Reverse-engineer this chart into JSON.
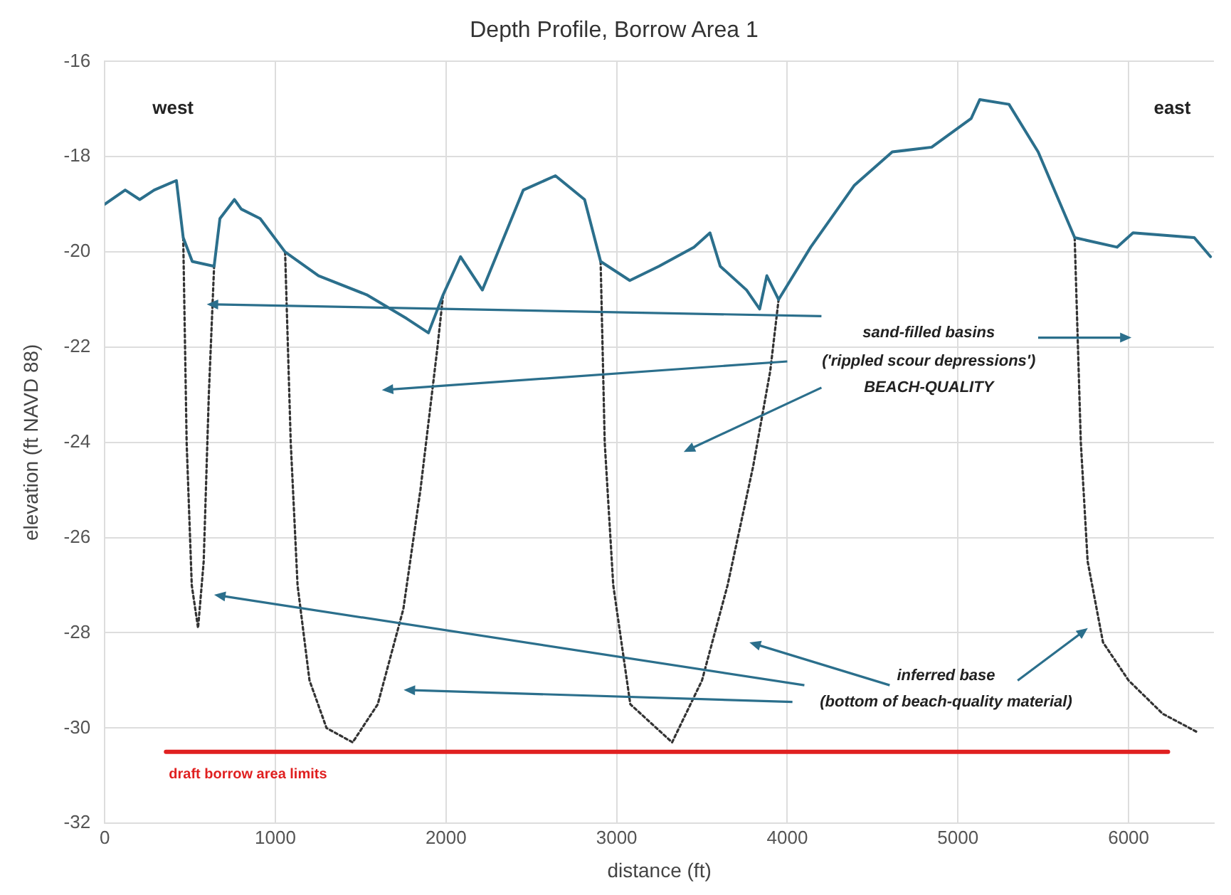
{
  "chart_data": {
    "type": "line",
    "title": "Depth Profile, Borrow Area 1",
    "xlabel": "distance (ft)",
    "ylabel": "elevation (ft NAVD 88)",
    "xlim": [
      0,
      6500
    ],
    "xticks": [
      0,
      1000,
      2000,
      3000,
      4000,
      5000,
      6000
    ],
    "ylim": [
      -32,
      -16
    ],
    "yticks": [
      -32,
      -30,
      -28,
      -26,
      -24,
      -22,
      -20,
      -18,
      -16
    ],
    "grid": true,
    "legend": false,
    "marker": "none",
    "series": [
      {
        "color": "#2b6f8c",
        "line_style": "solid",
        "x": [
          0,
          120,
          205,
          290,
          420,
          460,
          513,
          641,
          675,
          760,
          800,
          911,
          1057,
          1253,
          1535,
          1770,
          1897,
          1983,
          2085,
          2213,
          2453,
          2641,
          2812,
          2906,
          3077,
          3248,
          3453,
          3547,
          3607,
          3761,
          3838,
          3880,
          3949,
          4137,
          4393,
          4615,
          4846,
          5077,
          5128,
          5299,
          5470,
          5684,
          5932,
          6026,
          6385,
          6480
        ],
        "values": [
          -19.0,
          -18.7,
          -18.9,
          -18.7,
          -18.5,
          -19.7,
          -20.2,
          -20.3,
          -19.3,
          -18.9,
          -19.1,
          -19.3,
          -20.0,
          -20.5,
          -20.9,
          -21.4,
          -21.7,
          -20.9,
          -20.1,
          -20.8,
          -18.7,
          -18.4,
          -18.9,
          -20.2,
          -20.6,
          -20.3,
          -19.9,
          -19.6,
          -20.3,
          -20.8,
          -21.2,
          -20.5,
          -21.0,
          -19.9,
          -18.6,
          -17.9,
          -17.8,
          -17.2,
          -16.8,
          -16.9,
          -17.9,
          -19.7,
          -19.9,
          -19.6,
          -19.7,
          -20.1
        ]
      },
      {
        "color": "#333333",
        "line_style": "dotted",
        "x": [
          460,
          480,
          510,
          547,
          580,
          610,
          641,
          800,
          1057,
          1090,
          1130,
          1200,
          1300,
          1453,
          1600,
          1750,
          1850,
          1950,
          1983,
          2400,
          2906,
          2930,
          2980,
          3080,
          3325,
          3500,
          3650,
          3800,
          3900,
          3949,
          4800,
          5684,
          5720,
          5760,
          5850,
          6000,
          6200,
          6410
        ],
        "values": [
          -19.7,
          -24,
          -27,
          -27.9,
          -26.5,
          -23,
          -20.3,
          null,
          -20.0,
          -24,
          -27,
          -29,
          -30,
          -30.3,
          -29.5,
          -27.5,
          -25,
          -22,
          -20.9,
          null,
          -20.2,
          -24,
          -27,
          -29.5,
          -30.3,
          -29,
          -27,
          -24.5,
          -22.5,
          -21.0,
          null,
          -19.7,
          -24,
          -26.5,
          -28.2,
          -29,
          -29.7,
          -30.1
        ]
      },
      {
        "name": "draft borrow area limits",
        "color": "#e02020",
        "line_style": "solid",
        "x": [
          359,
          6231
        ],
        "values": [
          -30.5,
          -30.5
        ]
      }
    ],
    "annotations": [
      "west",
      "east",
      "sand-filled basins",
      "('rippled scour depressions')",
      "BEACH-QUALITY",
      "inferred base",
      "(bottom of beach-quality material)"
    ]
  }
}
